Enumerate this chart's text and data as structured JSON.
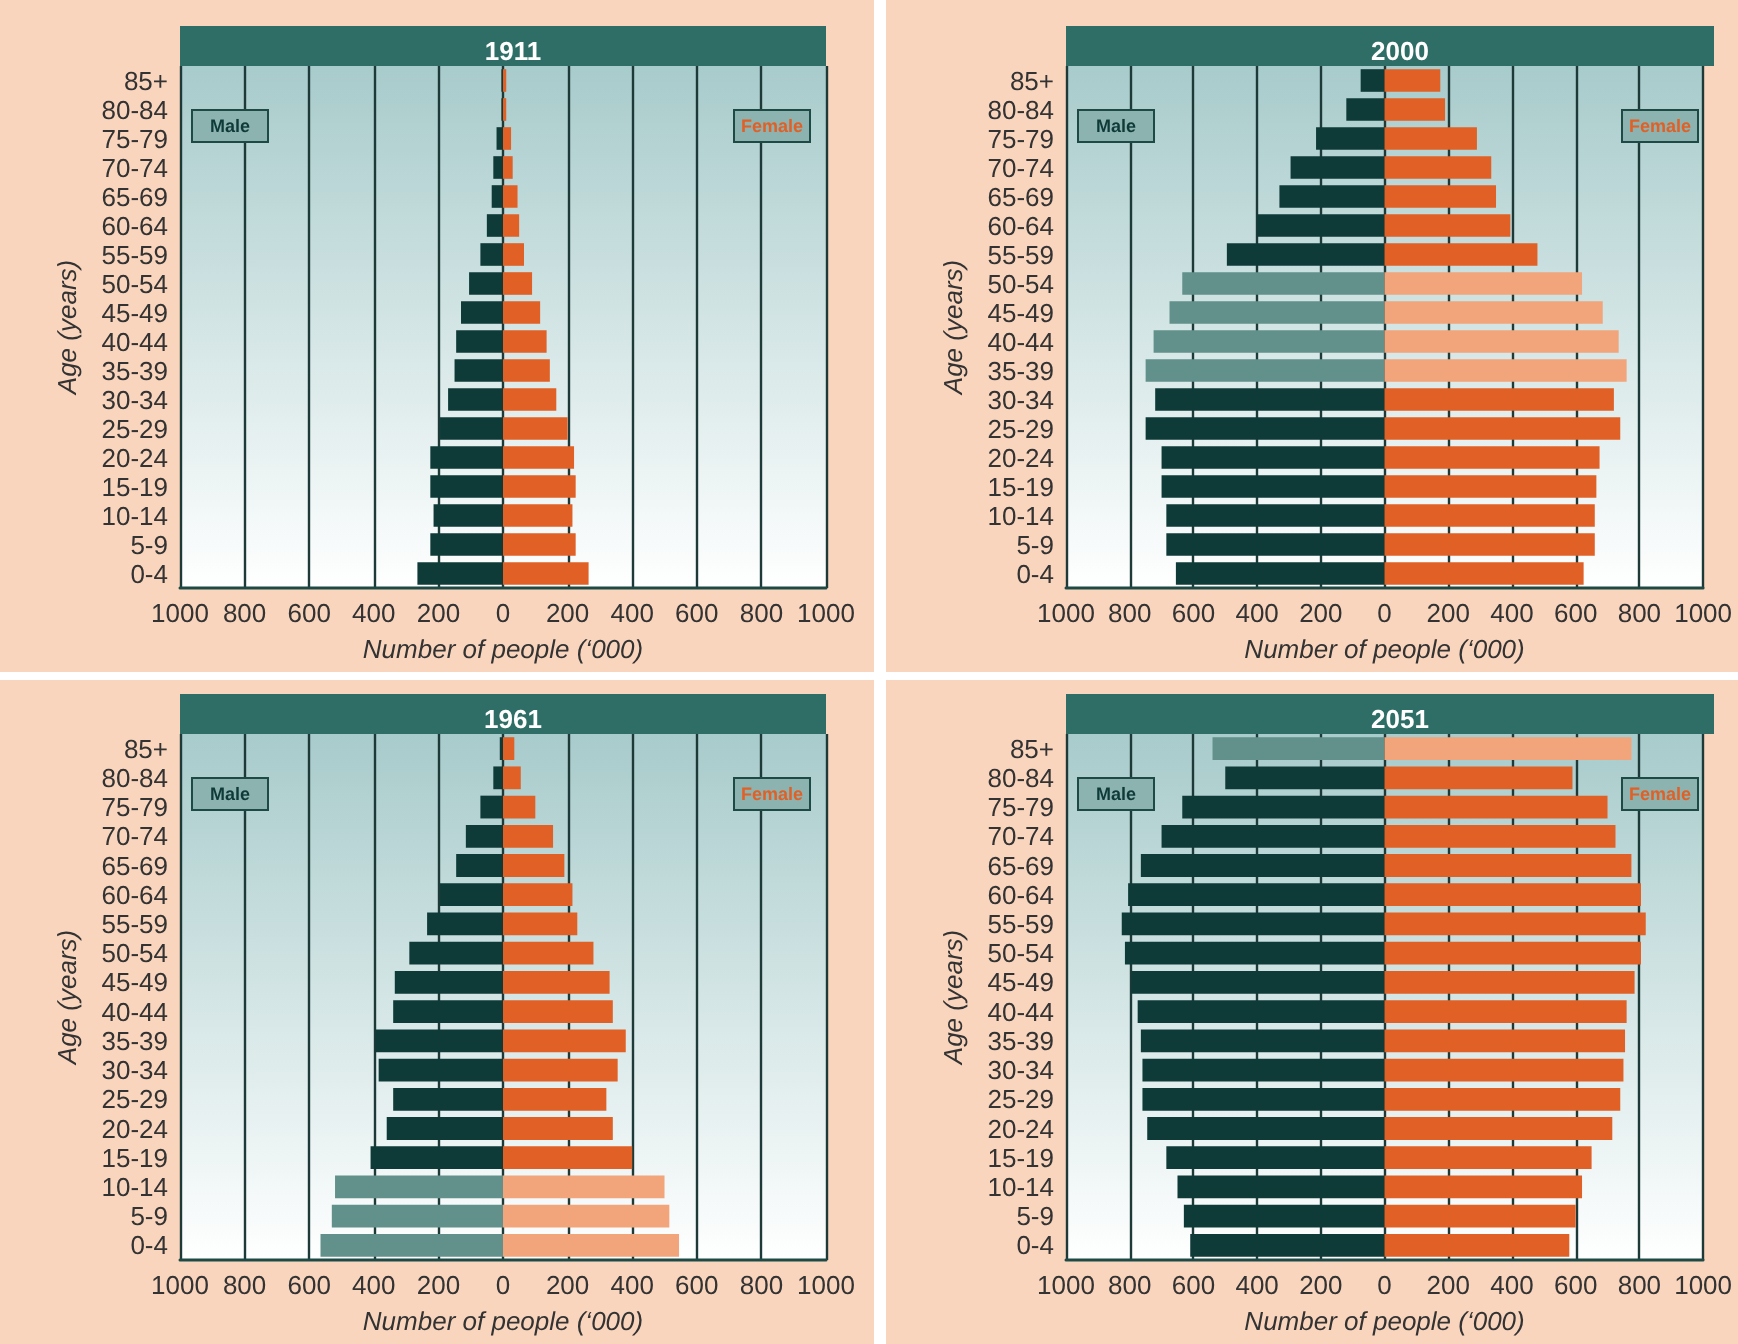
{
  "chart_data": [
    {
      "type": "bar",
      "orientation": "horizontal",
      "stacked": true,
      "title": "1911",
      "xlabel": "Number of people (‘000)",
      "ylabel": "Age (years)",
      "grid": "x",
      "categories": [
        "85+",
        "80-84",
        "75-79",
        "70-74",
        "65-69",
        "60-64",
        "55-59",
        "50-54",
        "45-49",
        "40-44",
        "35-39",
        "30-34",
        "25-29",
        "20-24",
        "15-19",
        "10-14",
        "5-9",
        "0-4"
      ],
      "xlim": [
        -1000,
        1000
      ],
      "xticks": [
        {
          "value": -1000,
          "label": "1000"
        },
        {
          "value": -800,
          "label": "800"
        },
        {
          "value": -600,
          "label": "600"
        },
        {
          "value": -400,
          "label": "400"
        },
        {
          "value": -200,
          "label": "200"
        },
        0,
        200,
        400,
        600,
        800,
        1000
      ],
      "series": [
        {
          "name": "Male",
          "colors": [
            "#0e3b38",
            "#0e3b38",
            "#0e3b38",
            "#0e3b38",
            "#0e3b38",
            "#0e3b38",
            "#0e3b38",
            "#0e3b38",
            "#0e3b38",
            "#0e3b38",
            "#0e3b38",
            "#0e3b38",
            "#0e3b38",
            "#0e3b38",
            "#0e3b38",
            "#0e3b38",
            "#0e3b38",
            "#0e3b38"
          ],
          "values": [
            -5,
            -5,
            -20,
            -30,
            -35,
            -50,
            -70,
            -105,
            -130,
            -145,
            -150,
            -170,
            -195,
            -225,
            -225,
            -215,
            -225,
            -265
          ]
        },
        {
          "name": "Female",
          "colors": [
            "#e06026",
            "#e06026",
            "#e06026",
            "#e06026",
            "#e06026",
            "#e06026",
            "#e06026",
            "#e06026",
            "#e06026",
            "#e06026",
            "#e06026",
            "#e06026",
            "#e06026",
            "#e06026",
            "#e06026",
            "#e06026",
            "#e06026",
            "#e06026"
          ],
          "values": [
            10,
            10,
            25,
            30,
            45,
            50,
            65,
            90,
            115,
            135,
            145,
            165,
            200,
            220,
            225,
            215,
            225,
            265
          ]
        }
      ]
    },
    {
      "type": "bar",
      "orientation": "horizontal",
      "stacked": true,
      "title": "2000",
      "xlabel": "Number of people (‘000)",
      "ylabel": "Age (years)",
      "grid": "x",
      "categories": [
        "85+",
        "80-84",
        "75-79",
        "70-74",
        "65-69",
        "60-64",
        "55-59",
        "50-54",
        "45-49",
        "40-44",
        "35-39",
        "30-34",
        "25-29",
        "20-24",
        "15-19",
        "10-14",
        "5-9",
        "0-4"
      ],
      "xlim": [
        -1000,
        1000
      ],
      "xticks": [
        {
          "value": -1000,
          "label": "1000"
        },
        {
          "value": -800,
          "label": "800"
        },
        {
          "value": -600,
          "label": "600"
        },
        {
          "value": -400,
          "label": "400"
        },
        {
          "value": -200,
          "label": "200"
        },
        0,
        200,
        400,
        600,
        800,
        1000
      ],
      "series": [
        {
          "name": "Male",
          "colors": [
            "#0e3b38",
            "#0e3b38",
            "#0e3b38",
            "#0e3b38",
            "#0e3b38",
            "#0e3b38",
            "#0e3b38",
            "#62908a",
            "#62908a",
            "#62908a",
            "#62908a",
            "#0e3b38",
            "#0e3b38",
            "#0e3b38",
            "#0e3b38",
            "#0e3b38",
            "#0e3b38",
            "#0e3b38"
          ],
          "values": [
            -75,
            -120,
            -215,
            -295,
            -330,
            -400,
            -495,
            -635,
            -675,
            -725,
            -750,
            -720,
            -750,
            -700,
            -700,
            -685,
            -685,
            -655
          ]
        },
        {
          "name": "Female",
          "colors": [
            "#e06026",
            "#e06026",
            "#e06026",
            "#e06026",
            "#e06026",
            "#e06026",
            "#e06026",
            "#f2a47a",
            "#f2a47a",
            "#f2a47a",
            "#f2a47a",
            "#e06026",
            "#e06026",
            "#e06026",
            "#e06026",
            "#e06026",
            "#e06026",
            "#e06026"
          ],
          "values": [
            175,
            190,
            290,
            335,
            350,
            395,
            480,
            620,
            685,
            735,
            760,
            720,
            740,
            675,
            665,
            660,
            660,
            625
          ]
        }
      ]
    },
    {
      "type": "bar",
      "orientation": "horizontal",
      "stacked": true,
      "title": "1961",
      "xlabel": "Number of people (‘000)",
      "ylabel": "Age (years)",
      "grid": "x",
      "categories": [
        "85+",
        "80-84",
        "75-79",
        "70-74",
        "65-69",
        "60-64",
        "55-59",
        "50-54",
        "45-49",
        "40-44",
        "35-39",
        "30-34",
        "25-29",
        "20-24",
        "15-19",
        "10-14",
        "5-9",
        "0-4"
      ],
      "xlim": [
        -1000,
        1000
      ],
      "xticks": [
        {
          "value": -1000,
          "label": "1000"
        },
        {
          "value": -800,
          "label": "800"
        },
        {
          "value": -600,
          "label": "600"
        },
        {
          "value": -400,
          "label": "400"
        },
        {
          "value": -200,
          "label": "200"
        },
        0,
        200,
        400,
        600,
        800,
        1000
      ],
      "series": [
        {
          "name": "Male",
          "colors": [
            "#0e3b38",
            "#0e3b38",
            "#0e3b38",
            "#0e3b38",
            "#0e3b38",
            "#0e3b38",
            "#0e3b38",
            "#0e3b38",
            "#0e3b38",
            "#0e3b38",
            "#0e3b38",
            "#0e3b38",
            "#0e3b38",
            "#0e3b38",
            "#0e3b38",
            "#62908a",
            "#62908a",
            "#62908a"
          ],
          "values": [
            -10,
            -30,
            -70,
            -115,
            -145,
            -195,
            -235,
            -290,
            -335,
            -340,
            -395,
            -385,
            -340,
            -360,
            -410,
            -520,
            -530,
            -565
          ]
        },
        {
          "name": "Female",
          "colors": [
            "#e06026",
            "#e06026",
            "#e06026",
            "#e06026",
            "#e06026",
            "#e06026",
            "#e06026",
            "#e06026",
            "#e06026",
            "#e06026",
            "#e06026",
            "#e06026",
            "#e06026",
            "#e06026",
            "#e06026",
            "#f2a47a",
            "#f2a47a",
            "#f2a47a"
          ],
          "values": [
            35,
            55,
            100,
            155,
            190,
            215,
            230,
            280,
            330,
            340,
            380,
            355,
            320,
            340,
            400,
            500,
            515,
            545
          ]
        }
      ]
    },
    {
      "type": "bar",
      "orientation": "horizontal",
      "stacked": true,
      "title": "2051",
      "xlabel": "Number of people (‘000)",
      "ylabel": "Age (years)",
      "grid": "x",
      "categories": [
        "85+",
        "80-84",
        "75-79",
        "70-74",
        "65-69",
        "60-64",
        "55-59",
        "50-54",
        "45-49",
        "40-44",
        "35-39",
        "30-34",
        "25-29",
        "20-24",
        "15-19",
        "10-14",
        "5-9",
        "0-4"
      ],
      "xlim": [
        -1000,
        1000
      ],
      "xticks": [
        {
          "value": -1000,
          "label": "1000"
        },
        {
          "value": -800,
          "label": "800"
        },
        {
          "value": -600,
          "label": "600"
        },
        {
          "value": -400,
          "label": "400"
        },
        {
          "value": -200,
          "label": "200"
        },
        0,
        200,
        400,
        600,
        800,
        1000
      ],
      "series": [
        {
          "name": "Male",
          "colors": [
            "#62908a",
            "#0e3b38",
            "#0e3b38",
            "#0e3b38",
            "#0e3b38",
            "#0e3b38",
            "#0e3b38",
            "#0e3b38",
            "#0e3b38",
            "#0e3b38",
            "#0e3b38",
            "#0e3b38",
            "#0e3b38",
            "#0e3b38",
            "#0e3b38",
            "#0e3b38",
            "#0e3b38",
            "#0e3b38"
          ],
          "values": [
            -540,
            -500,
            -635,
            -700,
            -765,
            -805,
            -825,
            -815,
            -795,
            -775,
            -765,
            -760,
            -760,
            -745,
            -685,
            -650,
            -630,
            -610
          ]
        },
        {
          "name": "Female",
          "colors": [
            "#f2a47a",
            "#e06026",
            "#e06026",
            "#e06026",
            "#e06026",
            "#e06026",
            "#e06026",
            "#e06026",
            "#e06026",
            "#e06026",
            "#e06026",
            "#e06026",
            "#e06026",
            "#e06026",
            "#e06026",
            "#e06026",
            "#e06026",
            "#e06026"
          ],
          "values": [
            775,
            590,
            700,
            725,
            775,
            805,
            820,
            805,
            785,
            760,
            755,
            750,
            740,
            715,
            650,
            620,
            600,
            580
          ]
        }
      ]
    }
  ]
}
